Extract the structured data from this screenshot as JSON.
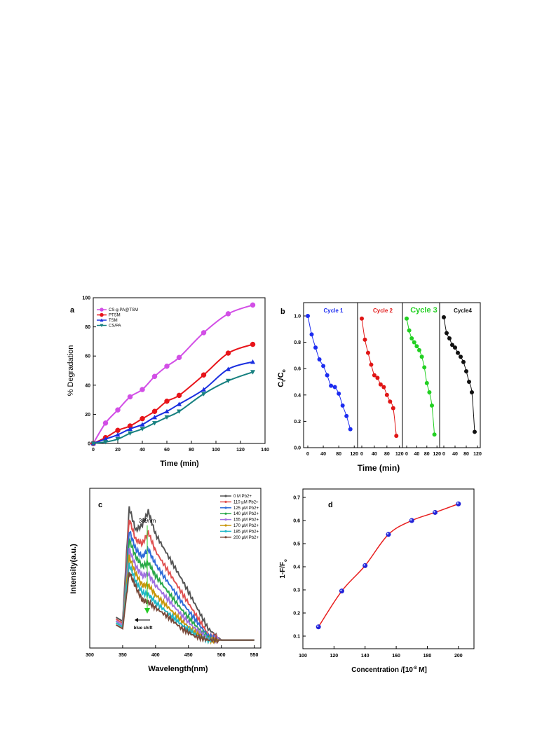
{
  "chart_data": [
    {
      "panel": "a",
      "type": "line",
      "xlabel": "Time (min)",
      "ylabel": "% Degradation",
      "xlim": [
        0,
        140
      ],
      "ylim": [
        0,
        100
      ],
      "xticks": [
        0,
        20,
        40,
        60,
        80,
        100,
        120,
        140
      ],
      "yticks": [
        0,
        20,
        40,
        60,
        80,
        100
      ],
      "legend_position": "top-left",
      "series": [
        {
          "name": "CS-g-PA@TSM",
          "color": "#d24ee6",
          "marker": "circle",
          "x": [
            0,
            10,
            20,
            30,
            40,
            50,
            60,
            70,
            90,
            110,
            130
          ],
          "y": [
            0,
            14,
            23,
            32,
            37,
            46,
            53,
            59,
            76,
            89,
            95
          ]
        },
        {
          "name": "PTSM",
          "color": "#e8141a",
          "marker": "circle",
          "x": [
            0,
            10,
            20,
            30,
            40,
            50,
            60,
            70,
            90,
            110,
            130
          ],
          "y": [
            0,
            4,
            9,
            12,
            17,
            22,
            29,
            33,
            47,
            62,
            68
          ]
        },
        {
          "name": "TSM",
          "color": "#1a2fe0",
          "marker": "triangle-up",
          "x": [
            0,
            10,
            20,
            30,
            40,
            50,
            60,
            70,
            90,
            110,
            130
          ],
          "y": [
            0,
            3,
            6,
            10,
            13,
            18,
            22,
            27,
            37,
            51,
            56
          ]
        },
        {
          "name": "CS/PA",
          "color": "#178080",
          "marker": "triangle-down",
          "x": [
            0,
            10,
            20,
            30,
            40,
            50,
            60,
            70,
            90,
            110,
            130
          ],
          "y": [
            0,
            1,
            3,
            7,
            10,
            14,
            18,
            22,
            34,
            43,
            49
          ]
        }
      ]
    },
    {
      "panel": "b",
      "type": "scatter",
      "xlabel": "Time (min)",
      "ylabel": "C_t/C_o",
      "ylim": [
        0,
        1.0
      ],
      "yticks": [
        0.0,
        0.2,
        0.4,
        0.6,
        0.8,
        1.0
      ],
      "xticks": [
        0,
        40,
        80,
        120
      ],
      "xlim_each_cycle": [
        0,
        125
      ],
      "series": [
        {
          "name": "Cycle 1",
          "color": "#1c2cf0",
          "x": [
            0,
            10,
            20,
            30,
            40,
            50,
            60,
            70,
            80,
            90,
            100,
            110
          ],
          "y": [
            1.0,
            0.86,
            0.76,
            0.67,
            0.62,
            0.55,
            0.47,
            0.46,
            0.41,
            0.32,
            0.24,
            0.14
          ]
        },
        {
          "name": "Cycle 2",
          "color": "#e01515",
          "x": [
            0,
            10,
            20,
            30,
            40,
            50,
            60,
            70,
            80,
            90,
            100,
            110
          ],
          "y": [
            0.98,
            0.82,
            0.72,
            0.63,
            0.55,
            0.53,
            0.48,
            0.46,
            0.4,
            0.35,
            0.3,
            0.09
          ]
        },
        {
          "name": "Cycle 3",
          "color": "#22d022",
          "x": [
            0,
            10,
            20,
            30,
            40,
            50,
            60,
            70,
            80,
            90,
            100,
            110
          ],
          "y": [
            0.98,
            0.89,
            0.83,
            0.8,
            0.77,
            0.74,
            0.69,
            0.61,
            0.49,
            0.42,
            0.32,
            0.1
          ]
        },
        {
          "name": "Cycle4",
          "color": "#111111",
          "x": [
            0,
            10,
            20,
            30,
            40,
            50,
            60,
            70,
            80,
            90,
            100,
            110
          ],
          "y": [
            0.99,
            0.87,
            0.83,
            0.78,
            0.76,
            0.72,
            0.69,
            0.65,
            0.58,
            0.5,
            0.42,
            0.12
          ]
        }
      ]
    },
    {
      "panel": "c",
      "type": "line",
      "xlabel": "Wavelength(nm)",
      "ylabel": "Intensity(a.u.)",
      "xlim": [
        300,
        560
      ],
      "xticks": [
        300,
        350,
        400,
        450,
        500,
        550
      ],
      "annotations": [
        "389nm",
        "blue shift"
      ],
      "series": [
        {
          "name": "0 M Pb2+",
          "color": "#555555",
          "x": [
            340,
            350,
            360,
            370,
            380,
            389,
            400,
            420,
            440,
            460,
            480,
            500,
            550
          ],
          "y": [
            0.14,
            0.12,
            0.72,
            0.6,
            0.63,
            0.7,
            0.58,
            0.46,
            0.34,
            0.21,
            0.08,
            0.02,
            0.02
          ]
        },
        {
          "name": "110 µM Pb2+",
          "color": "#e05050",
          "x": [
            340,
            350,
            360,
            370,
            380,
            389,
            400,
            420,
            440,
            460,
            480,
            500,
            550
          ],
          "y": [
            0.13,
            0.11,
            0.66,
            0.55,
            0.53,
            0.59,
            0.49,
            0.38,
            0.27,
            0.16,
            0.05,
            0.02,
            0.02
          ]
        },
        {
          "name": "125 µM Pb2+",
          "color": "#2e6bd8",
          "x": [
            340,
            350,
            360,
            370,
            380,
            389,
            400,
            420,
            440,
            460,
            480,
            500,
            550
          ],
          "y": [
            0.12,
            0.1,
            0.6,
            0.5,
            0.46,
            0.5,
            0.42,
            0.32,
            0.22,
            0.13,
            0.04,
            0.02,
            0.02
          ]
        },
        {
          "name": "140 µM Pb2+",
          "color": "#2aa84a",
          "x": [
            340,
            350,
            360,
            370,
            380,
            389,
            400,
            420,
            440,
            460,
            480,
            500,
            550
          ],
          "y": [
            0.12,
            0.1,
            0.55,
            0.46,
            0.41,
            0.43,
            0.36,
            0.27,
            0.18,
            0.1,
            0.03,
            0.02,
            0.02
          ]
        },
        {
          "name": "155 µM Pb2+",
          "color": "#a070e0",
          "x": [
            340,
            350,
            360,
            370,
            380,
            389,
            400,
            420,
            440,
            460,
            480,
            500,
            550
          ],
          "y": [
            0.12,
            0.1,
            0.5,
            0.41,
            0.36,
            0.37,
            0.31,
            0.23,
            0.15,
            0.08,
            0.03,
            0.02,
            0.02
          ]
        },
        {
          "name": "170 µM Pb2+",
          "color": "#c8960a",
          "x": [
            340,
            350,
            360,
            370,
            380,
            389,
            400,
            420,
            440,
            460,
            480,
            500,
            550
          ],
          "y": [
            0.11,
            0.09,
            0.46,
            0.37,
            0.31,
            0.31,
            0.26,
            0.19,
            0.12,
            0.06,
            0.02,
            0.02,
            0.02
          ]
        },
        {
          "name": "185 µM Pb2+",
          "color": "#20b8c8",
          "x": [
            340,
            350,
            360,
            370,
            380,
            389,
            400,
            420,
            440,
            460,
            480,
            500,
            550
          ],
          "y": [
            0.11,
            0.09,
            0.42,
            0.33,
            0.27,
            0.26,
            0.22,
            0.16,
            0.1,
            0.05,
            0.02,
            0.02,
            0.02
          ]
        },
        {
          "name": "200 µM Pb2+",
          "color": "#7a4a3a",
          "x": [
            340,
            350,
            360,
            370,
            380,
            389,
            400,
            420,
            440,
            460,
            480,
            500,
            550
          ],
          "y": [
            0.1,
            0.08,
            0.38,
            0.3,
            0.23,
            0.22,
            0.19,
            0.14,
            0.08,
            0.04,
            0.02,
            0.02,
            0.02
          ]
        }
      ]
    },
    {
      "panel": "d",
      "type": "scatter",
      "xlabel": "Concentration /[10^-8 M]",
      "ylabel": "1-F/F_o",
      "xlim": [
        100,
        210
      ],
      "ylim": [
        0.1,
        0.7
      ],
      "xticks": [
        100,
        120,
        140,
        160,
        180,
        200
      ],
      "yticks": [
        0.1,
        0.2,
        0.3,
        0.4,
        0.5,
        0.6,
        0.7
      ],
      "series": [
        {
          "name": "",
          "color": "#2323d8",
          "fit_color": "#e81e1e",
          "x": [
            110,
            125,
            140,
            155,
            170,
            185,
            200
          ],
          "y": [
            0.14,
            0.295,
            0.405,
            0.54,
            0.6,
            0.635,
            0.672
          ]
        }
      ]
    }
  ],
  "labels": {
    "panel_a": "a",
    "panel_b": "b",
    "panel_c": "c",
    "panel_d": "d",
    "a_xlabel": "Time (min)",
    "a_ylabel": "% Degradation",
    "b_xlabel": "Time (min)",
    "b_ylabel_main": "C",
    "b_ylabel_sub1": "t",
    "b_ylabel_slash": "/C",
    "b_ylabel_sub2": "o",
    "c_xlabel": "Wavelength(nm)",
    "c_ylabel": "Intensity(a.u.)",
    "c_peak": "389nm",
    "c_shift": "blue shift",
    "d_xlabel_pre": "Concentration /[10",
    "d_xlabel_exp": "-8",
    "d_xlabel_post": " M]",
    "d_ylabel_main": "1-F/F",
    "d_ylabel_sub": "o"
  }
}
